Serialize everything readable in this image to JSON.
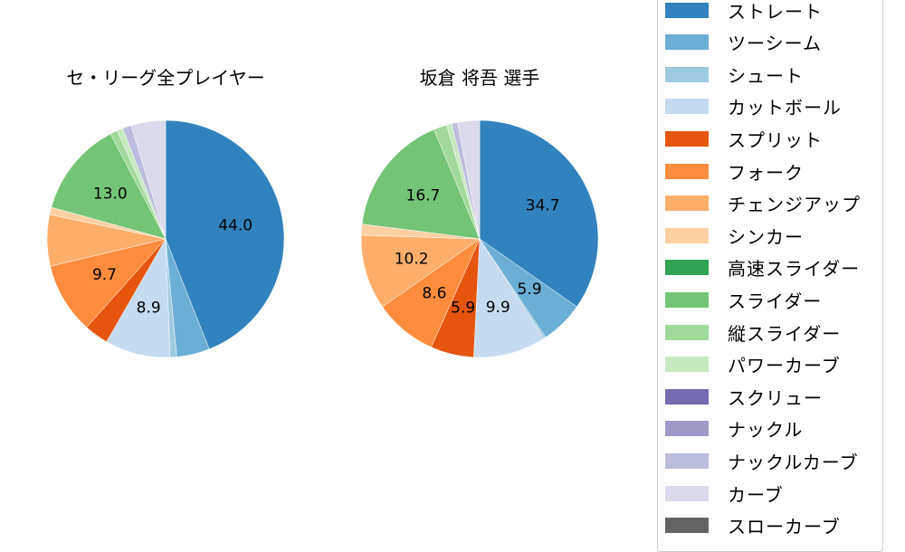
{
  "chart_data": [
    {
      "type": "pie",
      "title": "セ・リーグ全プレイヤー",
      "start_angle": 90,
      "direction": "clockwise",
      "categories": [
        "ストレート",
        "ツーシーム",
        "シュート",
        "カットボール",
        "スプリット",
        "フォーク",
        "チェンジアップ",
        "シンカー",
        "スライダー",
        "縦スライダー",
        "パワーカーブ",
        "ナックルカーブ",
        "カーブ"
      ],
      "values": [
        44.0,
        4.5,
        0.9,
        8.9,
        3.3,
        9.7,
        7.0,
        1.0,
        13.0,
        1.0,
        0.8,
        1.2,
        4.7
      ],
      "labels_shown": {
        "ストレート": "44.0",
        "カットボール": "8.9",
        "フォーク": "9.7",
        "スライダー": "13.0"
      }
    },
    {
      "type": "pie",
      "title": "坂倉 将吾  選手",
      "start_angle": 90,
      "direction": "clockwise",
      "categories": [
        "ストレート",
        "ツーシーム",
        "シュート",
        "カットボール",
        "スプリット",
        "フォーク",
        "チェンジアップ",
        "シンカー",
        "スライダー",
        "縦スライダー",
        "パワーカーブ",
        "ナックルカーブ",
        "カーブ"
      ],
      "values": [
        34.7,
        5.9,
        0.3,
        9.9,
        5.9,
        8.6,
        10.2,
        1.5,
        16.7,
        1.8,
        0.7,
        0.8,
        3.0
      ],
      "labels_shown": {
        "ストレート": "34.7",
        "ツーシーム": "5.9",
        "カットボール": "9.9",
        "スプリット": "5.9",
        "フォーク": "8.6",
        "チェンジアップ": "10.2",
        "スライダー": "16.7"
      }
    }
  ],
  "titles": {
    "left": "セ・リーグ全プレイヤー",
    "right": "坂倉 将吾  選手"
  },
  "legend": {
    "items": [
      {
        "label": "ストレート",
        "color": "#3182bd"
      },
      {
        "label": "ツーシーム",
        "color": "#6baed6"
      },
      {
        "label": "シュート",
        "color": "#9ecae1"
      },
      {
        "label": "カットボール",
        "color": "#c6dbef"
      },
      {
        "label": "スプリット",
        "color": "#e6550d"
      },
      {
        "label": "フォーク",
        "color": "#fd8d3c"
      },
      {
        "label": "チェンジアップ",
        "color": "#fdae6b"
      },
      {
        "label": "シンカー",
        "color": "#fdd0a2"
      },
      {
        "label": "高速スライダー",
        "color": "#31a354"
      },
      {
        "label": "スライダー",
        "color": "#74c476"
      },
      {
        "label": "縦スライダー",
        "color": "#a1d99b"
      },
      {
        "label": "パワーカーブ",
        "color": "#c7e9c0"
      },
      {
        "label": "スクリュー",
        "color": "#756bb1"
      },
      {
        "label": "ナックル",
        "color": "#9e9ac8"
      },
      {
        "label": "ナックルカーブ",
        "color": "#bcbddc"
      },
      {
        "label": "カーブ",
        "color": "#dadaeb"
      },
      {
        "label": "スローカーブ",
        "color": "#636363"
      }
    ]
  }
}
